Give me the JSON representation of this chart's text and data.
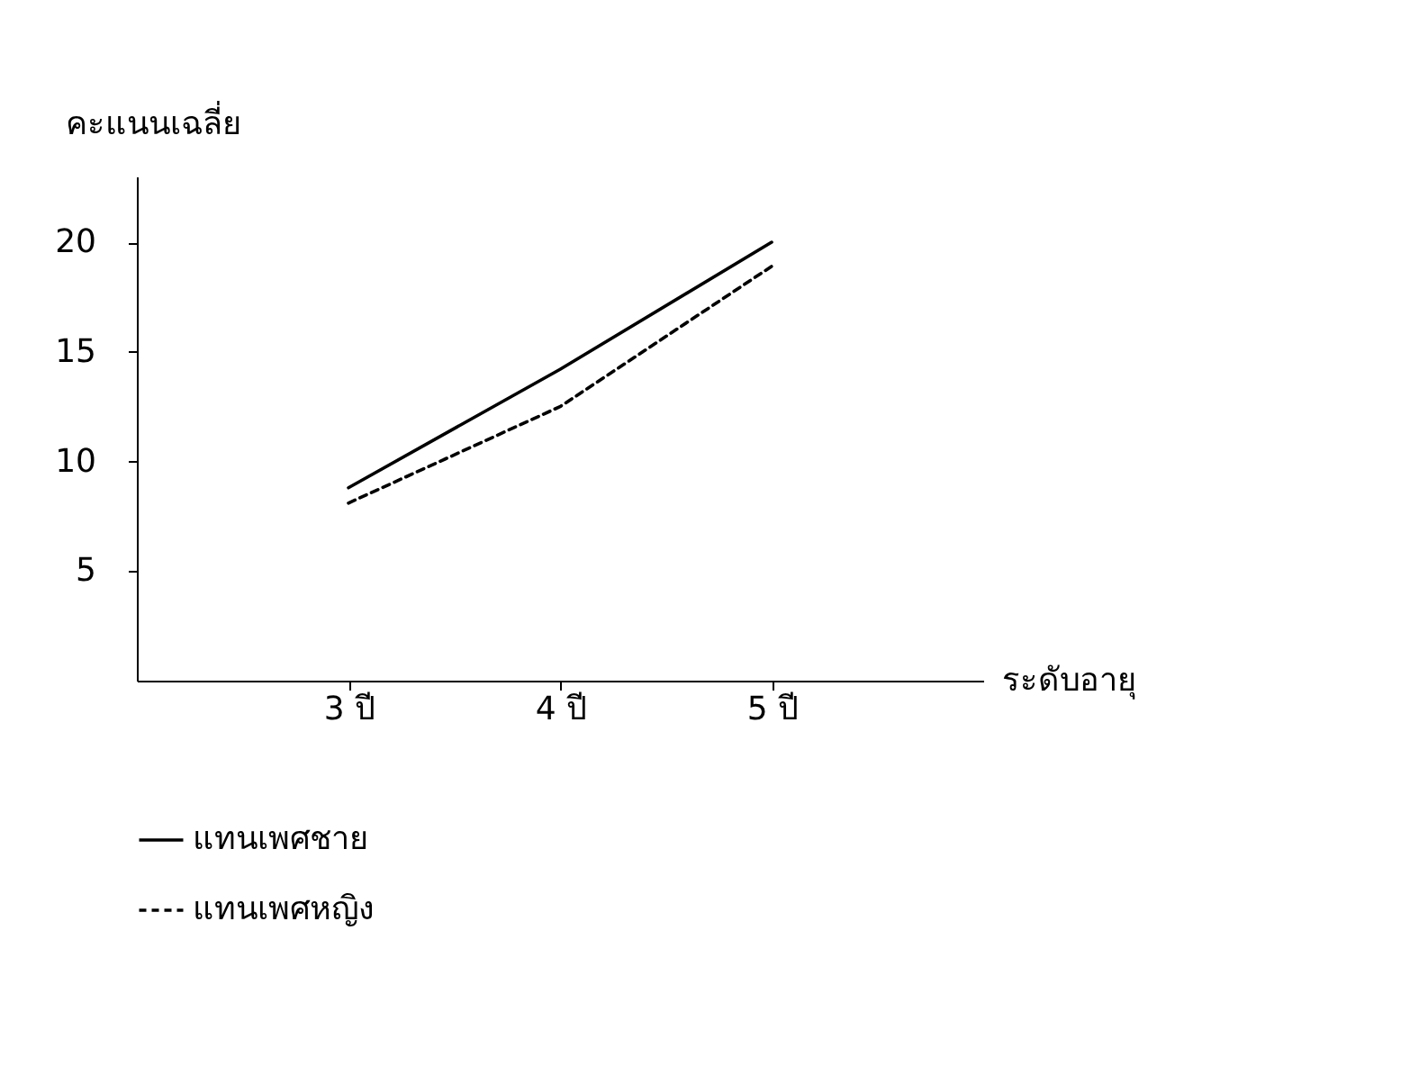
{
  "chart_data": {
    "type": "line",
    "xlabel": "ระดับอายุ",
    "ylabel": "คะแนนเฉลี่ย",
    "categories": [
      "3 ปี",
      "4 ปี",
      "5 ปี"
    ],
    "series": [
      {
        "name": "แทนเพศชาย",
        "color": "#000000",
        "values": [
          8.8,
          14.2,
          20
        ],
        "line_style": "solid"
      },
      {
        "name": "แทนเพศหญิง",
        "color": "#000000",
        "values": [
          8.1,
          12.5,
          18.9
        ],
        "line_style": "dashed"
      }
    ],
    "ylim": [
      0,
      23
    ],
    "yticks": [
      5,
      10,
      15,
      20
    ],
    "grid": false,
    "legend": "bottom"
  }
}
